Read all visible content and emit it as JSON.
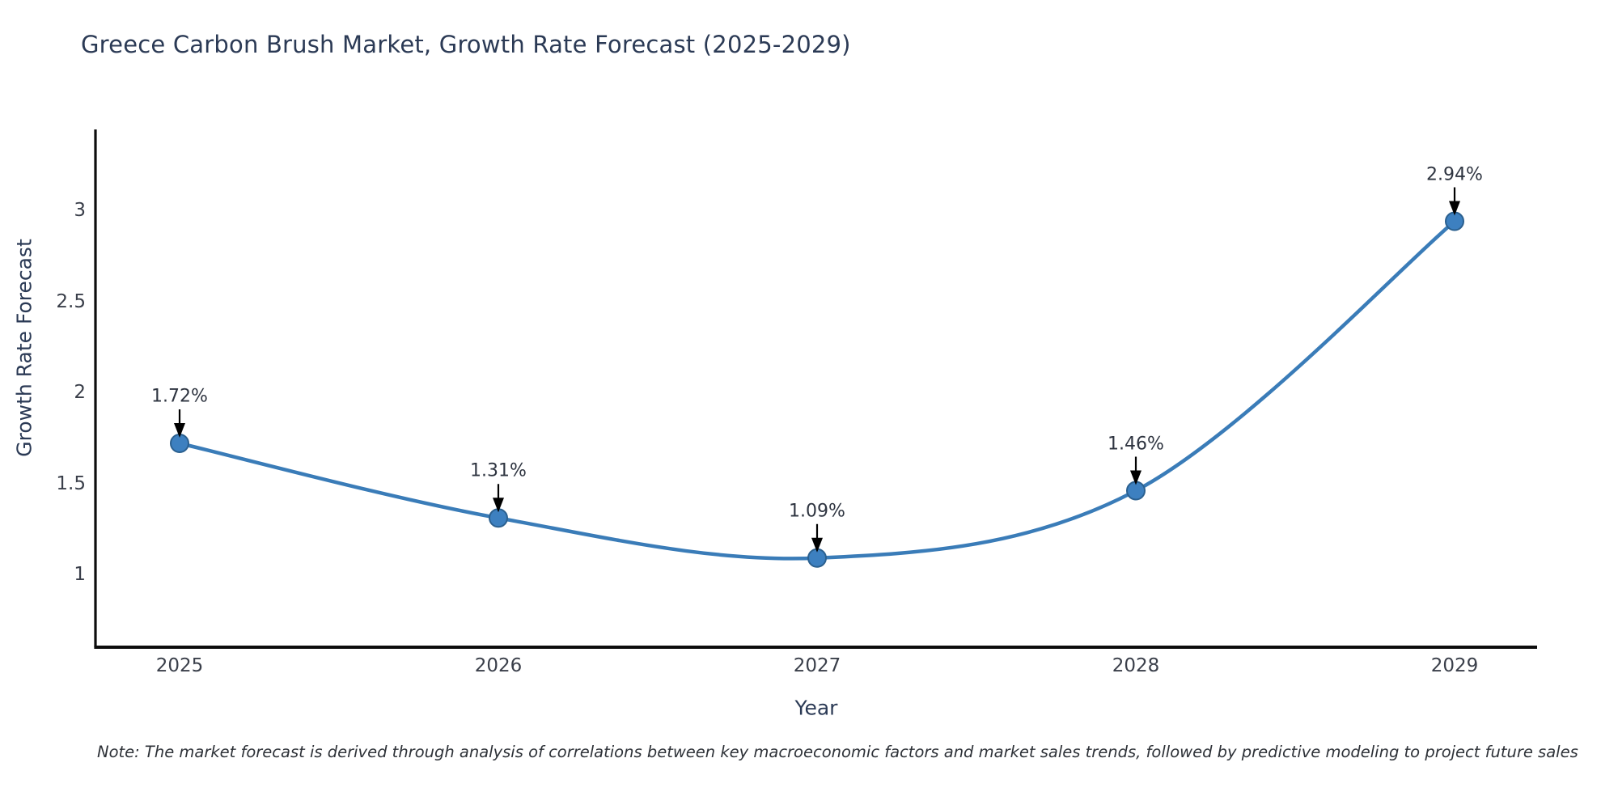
{
  "title": "Greece Carbon Brush Market, Growth Rate Forecast (2025-2029)",
  "note": "Note: The market forecast is derived through analysis of correlations between key macroeconomic factors and market sales trends, followed by predictive modeling to project future sales",
  "chart_data": {
    "type": "line",
    "title": "Greece Carbon Brush Market, Growth Rate Forecast (2025-2029)",
    "xlabel": "Year",
    "ylabel": "Growth Rate Forecast",
    "x": [
      2025,
      2026,
      2027,
      2028,
      2029
    ],
    "values": [
      1.72,
      1.31,
      1.09,
      1.46,
      2.94
    ],
    "point_labels": [
      "1.72%",
      "1.31%",
      "1.09%",
      "1.46%",
      "2.94%"
    ],
    "xtick_labels": [
      "2025",
      "2026",
      "2027",
      "2028",
      "2029"
    ],
    "ytick_values": [
      1,
      1.5,
      2,
      2.5,
      3
    ],
    "ytick_labels": [
      "1",
      "1.5",
      "2",
      "2.5",
      "3"
    ],
    "ylim": [
      0.6,
      3.45
    ],
    "grid": false,
    "legend_position": "none",
    "line_shape": "spline",
    "annotation_style": "text-with-down-arrow",
    "colors": {
      "line": "#3a7cb8",
      "marker_fill": "#3d80c0",
      "marker_edge": "#2b608f",
      "arrow": "#000000",
      "spine": "#0d0d0d",
      "title_text": "#2b3a55",
      "tick_text": "#3a3f4a"
    }
  }
}
